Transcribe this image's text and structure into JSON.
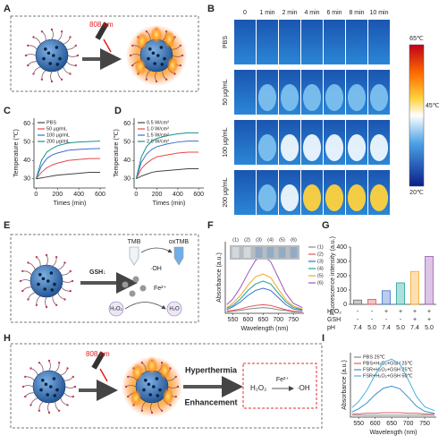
{
  "panel_labels": [
    "A",
    "B",
    "C",
    "D",
    "E",
    "F",
    "G",
    "H",
    "I"
  ],
  "diagram_a": {
    "laser": "808 nm"
  },
  "thermal_images": {
    "columns": [
      "0",
      "1 min",
      "2 min",
      "4 min",
      "6 min",
      "8 min",
      "10 min"
    ],
    "rows": [
      "PBS",
      "50 μg/mL",
      "100 μg/mL",
      "200 μg/mL"
    ],
    "colorbar_labels": [
      "65℃",
      "45℃",
      "20℃"
    ]
  },
  "diagram_e": {
    "tmb": "TMB",
    "oxtmb": "oxTMB",
    "gsh": "GSH↓",
    "oh": "·OH",
    "fe": "Fe²⁺",
    "h2o2": "H₂O₂",
    "h2o": "H₂O"
  },
  "diagram_h": {
    "laser": "808 nm",
    "line1": "Hyperthermia",
    "line2": "Enhancement",
    "h2o2": "H₂O₂",
    "fe": "Fe²⁺",
    "oh": "·OH"
  },
  "chart_data": [
    {
      "type": "line",
      "x_label": "Times (min)",
      "y_label": "Temperature (℃)",
      "x": [
        0,
        50,
        100,
        150,
        200,
        300,
        400,
        500,
        600
      ],
      "xlim": [
        -20,
        650
      ],
      "ylim": [
        25,
        63
      ],
      "xticks": [
        0,
        200,
        400,
        600
      ],
      "yticks": [
        30,
        40,
        50,
        60
      ],
      "series": [
        {
          "name": "PBS",
          "color": "#444444",
          "values": [
            30,
            30.5,
            31,
            31.5,
            32,
            32.5,
            33,
            33.5,
            33.5
          ]
        },
        {
          "name": "50 μg/mL",
          "color": "#e8474b",
          "values": [
            30,
            33.5,
            36,
            37.5,
            38.5,
            40,
            40.5,
            41,
            41
          ]
        },
        {
          "name": "100 μg/mL",
          "color": "#3a6fd0",
          "values": [
            30,
            37,
            41,
            43,
            44,
            45.5,
            46,
            46.3,
            46.5
          ]
        },
        {
          "name": "200 μg/mL",
          "color": "#17908a",
          "values": [
            30,
            40,
            44.5,
            46.5,
            48,
            49.5,
            50,
            50.3,
            50.5
          ]
        }
      ]
    },
    {
      "type": "line",
      "x_label": "Times (min)",
      "y_label": "Temperature (℃)",
      "x": [
        0,
        50,
        100,
        150,
        200,
        300,
        400,
        500,
        600
      ],
      "xlim": [
        -20,
        650
      ],
      "ylim": [
        25,
        63
      ],
      "xticks": [
        0,
        200,
        400,
        600
      ],
      "yticks": [
        30,
        40,
        50,
        60
      ],
      "series": [
        {
          "name": "0.5 W/cm²",
          "color": "#444444",
          "values": [
            30,
            31.5,
            32.5,
            33.5,
            34,
            34.5,
            35,
            35.5,
            35.5
          ]
        },
        {
          "name": "1.0 W/cm²",
          "color": "#e8474b",
          "values": [
            30,
            35.5,
            38.5,
            40.5,
            42,
            43,
            44,
            44.5,
            44.5
          ]
        },
        {
          "name": "1.5 W/cm²",
          "color": "#3a6fd0",
          "values": [
            30,
            39,
            43.5,
            46,
            47.5,
            49,
            50,
            50.5,
            50.5
          ]
        },
        {
          "name": "2.0 W/cm²",
          "color": "#17908a",
          "values": [
            30,
            42,
            47.5,
            50.5,
            52,
            53.5,
            54.5,
            55,
            55
          ]
        }
      ]
    },
    {
      "type": "line",
      "x_label": "Wavelength (nm)",
      "y_label": "Absorbance (a.u.)",
      "x": [
        530,
        550,
        575,
        600,
        625,
        650,
        675,
        700,
        725,
        750,
        780
      ],
      "xlim": [
        525,
        785
      ],
      "ylim": [
        0,
        1
      ],
      "xticks": [
        550,
        600,
        650,
        700,
        750
      ],
      "strip_labels": [
        "(1)",
        "(2)",
        "(3)",
        "(4)",
        "(5)",
        "(6)"
      ],
      "series": [
        {
          "name": "(1)",
          "color": "#888888",
          "values": [
            0.02,
            0.03,
            0.04,
            0.06,
            0.07,
            0.08,
            0.07,
            0.05,
            0.04,
            0.02,
            0.02
          ]
        },
        {
          "name": "(2)",
          "color": "#e05555",
          "values": [
            0.03,
            0.04,
            0.06,
            0.09,
            0.11,
            0.12,
            0.11,
            0.08,
            0.05,
            0.03,
            0.02
          ]
        },
        {
          "name": "(3)",
          "color": "#3a6fd0",
          "values": [
            0.05,
            0.09,
            0.16,
            0.25,
            0.32,
            0.35,
            0.32,
            0.22,
            0.12,
            0.06,
            0.04
          ]
        },
        {
          "name": "(4)",
          "color": "#1aa39a",
          "values": [
            0.07,
            0.11,
            0.2,
            0.32,
            0.41,
            0.45,
            0.41,
            0.28,
            0.16,
            0.08,
            0.05
          ]
        },
        {
          "name": "(5)",
          "color": "#f5a623",
          "values": [
            0.08,
            0.14,
            0.25,
            0.39,
            0.51,
            0.55,
            0.5,
            0.34,
            0.19,
            0.1,
            0.06
          ]
        },
        {
          "name": "(6)",
          "color": "#9b59b6",
          "values": [
            0.12,
            0.2,
            0.36,
            0.56,
            0.74,
            0.8,
            0.72,
            0.5,
            0.28,
            0.14,
            0.08
          ]
        }
      ]
    },
    {
      "type": "bar",
      "y_label": "Fluorescence intensity (a.u.)",
      "values": [
        30,
        35,
        95,
        150,
        230,
        335
      ],
      "colors": [
        "#666666",
        "#e05555",
        "#3a6fd0",
        "#1aa39a",
        "#f5a623",
        "#9b59b6"
      ],
      "ylim": [
        0,
        400
      ],
      "yticks": [
        0,
        100,
        200,
        300,
        400
      ],
      "table_rows": [
        {
          "name": "H₂O₂",
          "values": [
            "-",
            "-",
            "+",
            "+",
            "+",
            "+"
          ]
        },
        {
          "name": "GSH",
          "values": [
            "-",
            "-",
            "-",
            "-",
            "+",
            "+"
          ]
        },
        {
          "name": "pH",
          "values": [
            "7.4",
            "5.0",
            "7.4",
            "5.0",
            "7.4",
            "5.0"
          ]
        }
      ]
    },
    {
      "type": "line",
      "x_label": "Wavelength (nm)",
      "y_label": "Absorbance (a.u.)",
      "x": [
        530,
        550,
        575,
        600,
        625,
        650,
        675,
        700,
        725,
        750,
        780
      ],
      "xlim": [
        525,
        785
      ],
      "ylim": [
        0,
        1
      ],
      "xticks": [
        550,
        600,
        650,
        700,
        750
      ],
      "series": [
        {
          "name": "PBS 25℃",
          "color": "#888888",
          "values": [
            0.03,
            0.03,
            0.03,
            0.03,
            0.03,
            0.03,
            0.03,
            0.03,
            0.03,
            0.03,
            0.03
          ]
        },
        {
          "name": "PBS+H₂O₂+GSH 25℃",
          "color": "#e06060",
          "values": [
            0.05,
            0.05,
            0.06,
            0.06,
            0.07,
            0.07,
            0.07,
            0.06,
            0.06,
            0.05,
            0.05
          ]
        },
        {
          "name": "FSR+H₂O₂+GSH 25℃",
          "color": "#3a8fd0",
          "values": [
            0.08,
            0.13,
            0.22,
            0.35,
            0.45,
            0.48,
            0.44,
            0.31,
            0.17,
            0.09,
            0.06
          ]
        },
        {
          "name": "FSR+H₂O₂+GSH 50℃",
          "color": "#4ab3e0",
          "values": [
            0.15,
            0.24,
            0.42,
            0.66,
            0.85,
            0.9,
            0.82,
            0.58,
            0.32,
            0.16,
            0.1
          ]
        }
      ]
    }
  ]
}
